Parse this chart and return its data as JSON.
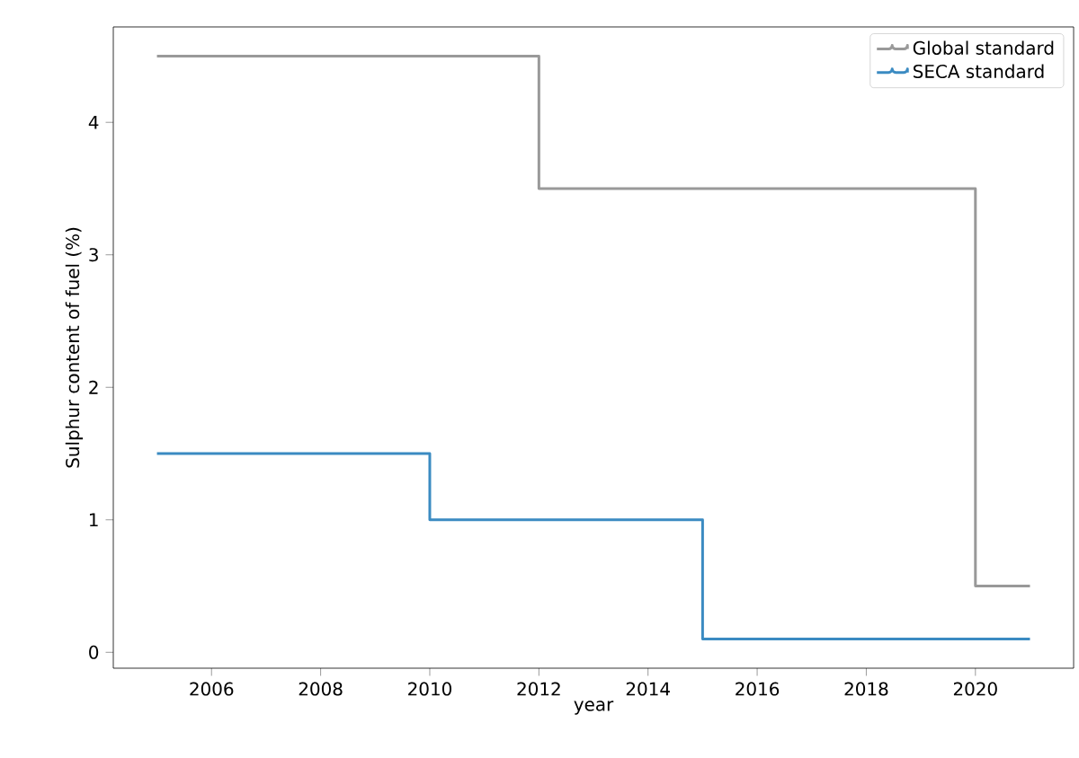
{
  "chart_data": {
    "type": "step",
    "xlabel": "year",
    "ylabel": "Sulphur content of fuel (%)",
    "series": [
      {
        "name": "Global standard",
        "color": "#999999",
        "x": [
          2005,
          2012,
          2020,
          2021
        ],
        "values": [
          4.5,
          3.5,
          0.5,
          0.5
        ]
      },
      {
        "name": "SECA standard",
        "color": "#3b8bc2",
        "x": [
          2005,
          2010,
          2015,
          2021
        ],
        "values": [
          1.5,
          1.0,
          0.1,
          0.1
        ]
      }
    ],
    "xlim": [
      2004.2,
      2021.8
    ],
    "xticks": [
      2006,
      2008,
      2010,
      2012,
      2014,
      2016,
      2018,
      2020
    ],
    "ylim": [
      -0.12,
      4.72
    ],
    "yticks": [
      0,
      1,
      2,
      3,
      4
    ],
    "legend": "top right",
    "grid": false,
    "marker": "none",
    "line_style": "solid"
  }
}
